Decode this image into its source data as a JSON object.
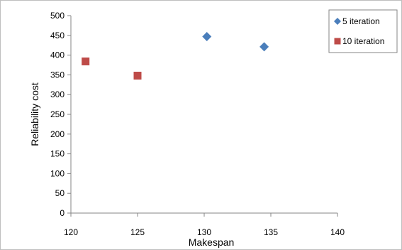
{
  "chart_data": {
    "type": "scatter",
    "title": "",
    "xlabel": "Makespan",
    "ylabel": "Reliability cost",
    "xlim": [
      120,
      140
    ],
    "ylim": [
      0,
      500
    ],
    "xticks": [
      120,
      125,
      130,
      135,
      140
    ],
    "yticks": [
      0,
      50,
      100,
      150,
      200,
      250,
      300,
      350,
      400,
      450,
      500
    ],
    "grid": false,
    "legend_position": "top-right",
    "series": [
      {
        "name": "5 iteration",
        "marker": "diamond",
        "color": "#4a7ebb",
        "points": [
          {
            "x": 130.2,
            "y": 447
          },
          {
            "x": 134.5,
            "y": 421
          }
        ]
      },
      {
        "name": "10 iteration",
        "marker": "square",
        "color": "#be4b48",
        "points": [
          {
            "x": 121.1,
            "y": 384
          },
          {
            "x": 125.0,
            "y": 348
          }
        ]
      }
    ]
  }
}
